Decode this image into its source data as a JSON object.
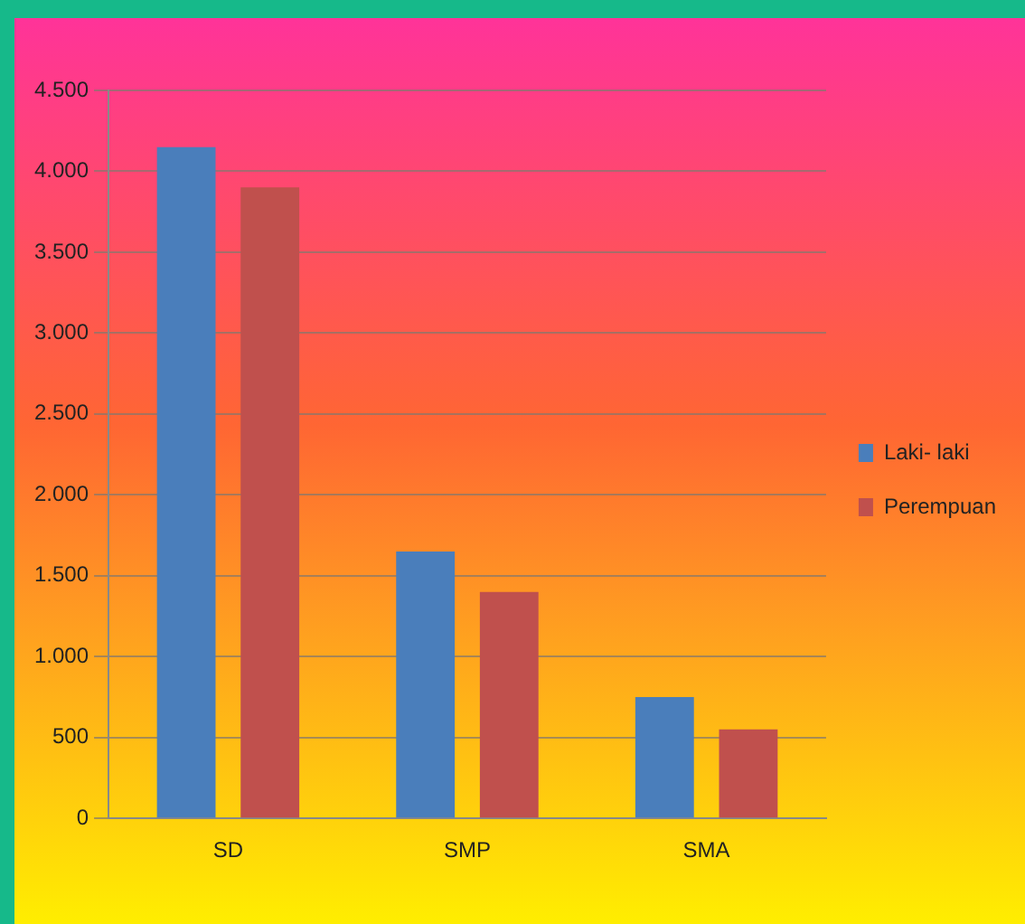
{
  "chart_data": {
    "type": "bar",
    "categories": [
      "SD",
      "SMP",
      "SMA"
    ],
    "series": [
      {
        "name": "Laki- laki",
        "color": "#4a7ebb",
        "values": [
          4150,
          1650,
          750
        ]
      },
      {
        "name": "Perempuan",
        "color": "#c0504d",
        "values": [
          3900,
          1400,
          550
        ]
      }
    ],
    "ylim": [
      0,
      4500
    ],
    "yticks": [
      0,
      {
        "value": 500,
        "label": "500"
      },
      {
        "value": 1000,
        "label": "1.000"
      },
      {
        "value": 1500,
        "label": "1.500"
      },
      {
        "value": 2000,
        "label": "2.000"
      },
      {
        "value": 2500,
        "label": "2.500"
      },
      {
        "value": 3000,
        "label": "3.000"
      },
      {
        "value": 3500,
        "label": "3.500"
      },
      {
        "value": 4000,
        "label": "4.000"
      },
      {
        "value": 4500,
        "label": "4.500"
      }
    ],
    "grid": "y",
    "legend": "right"
  }
}
